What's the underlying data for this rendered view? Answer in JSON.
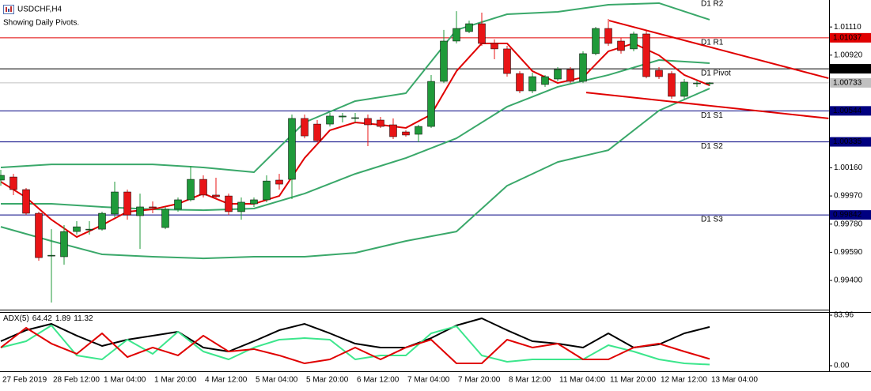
{
  "chart_data": [
    {
      "type": "candlestick",
      "title": "USDCHF,H4",
      "subtitle": "Showing Daily Pivots.",
      "categories": [
        "27 Feb 2019",
        null,
        null,
        null,
        "28 Feb 12:00",
        null,
        null,
        null,
        "1 Mar 04:00",
        null,
        null,
        null,
        "1 Mar 20:00",
        null,
        null,
        null,
        "4 Mar 12:00",
        null,
        null,
        null,
        "5 Mar 04:00",
        null,
        null,
        null,
        "5 Mar 20:00",
        null,
        null,
        null,
        "6 Mar 12:00",
        null,
        null,
        null,
        "7 Mar 04:00",
        null,
        null,
        null,
        "7 Mar 20:00",
        null,
        null,
        null,
        "8 Mar 12:00",
        null,
        null,
        null,
        "11 Mar 04:00",
        null,
        null,
        null,
        "11 Mar 20:00",
        null,
        null,
        null,
        "12 Mar 12:00",
        null,
        null,
        null,
        "13 Mar 04:00"
      ],
      "open": [
        1.00077,
        1.00098,
        1.00013,
        0.99853,
        0.99565,
        0.9956,
        0.9973,
        0.99741,
        0.99746,
        0.99848,
        0.99997,
        0.99837,
        0.99896,
        0.99757,
        0.9988,
        0.99944,
        1.00082,
        0.99976,
        0.9997,
        0.99864,
        0.99917,
        0.99944,
        1.00077,
        1.00082,
        1.00493,
        1.00455,
        1.00455,
        1.00503,
        1.00493,
        1.00493,
        1.00482,
        1.0045,
        1.00402,
        1.00386,
        1.00439,
        1.00743,
        1.01015,
        1.01079,
        1.01132,
        1.00999,
        1.00962,
        1.00796,
        1.00679,
        1.00722,
        1.00759,
        1.00823,
        1.00743,
        1.0093,
        1.011,
        1.01015,
        1.00962,
        1.01063,
        1.00818,
        1.00796,
        1.00642,
        1.00727,
        1.00727
      ],
      "high": [
        1.00146,
        1.00119,
        1.00024,
        0.99864,
        0.99746,
        0.99773,
        0.998,
        0.998,
        0.99864,
        1.00066,
        1.00013,
        0.99986,
        0.99933,
        0.99896,
        0.9996,
        1.00173,
        1.00109,
        1.00093,
        0.99986,
        0.9996,
        0.9996,
        1.00109,
        1.00119,
        1.00519,
        1.00519,
        1.00482,
        1.0053,
        1.0053,
        1.0053,
        1.00519,
        1.00503,
        1.00493,
        1.00413,
        1.0045,
        1.00786,
        1.0109,
        1.01217,
        1.01153,
        1.01207,
        1.01026,
        1.00983,
        1.00812,
        1.00802,
        1.00786,
        1.00839,
        1.00839,
        1.00946,
        1.01111,
        1.01164,
        1.01036,
        1.01079,
        1.0109,
        1.00839,
        1.00812,
        1.00759,
        1.00748,
        1.00738
      ],
      "low": [
        1.00039,
        0.99976,
        0.99842,
        0.99533,
        0.99251,
        0.99506,
        0.99709,
        0.99709,
        0.99736,
        0.99826,
        0.9981,
        0.99613,
        0.99853,
        0.99746,
        0.99864,
        0.99933,
        0.9996,
        0.99949,
        0.99842,
        0.9981,
        0.99896,
        0.99928,
        1.00013,
        0.99949,
        1.00359,
        1.00333,
        1.00439,
        1.00466,
        1.00466,
        1.00306,
        1.00429,
        1.00354,
        1.0037,
        1.00333,
        1.00429,
        1.00732,
        1.00999,
        1.01068,
        1.00983,
        1.00892,
        1.00775,
        1.00663,
        1.00663,
        1.00706,
        1.00743,
        1.00732,
        1.00732,
        1.00919,
        1.00983,
        1.0093,
        1.00946,
        1.00764,
        1.00759,
        1.00626,
        1.0062,
        1.00706,
        1.00711
      ],
      "close": [
        1.00109,
        1.00013,
        0.99853,
        0.99554,
        0.9957,
        0.9973,
        0.99762,
        0.99746,
        0.99853,
        0.99997,
        0.99842,
        0.99896,
        0.9989,
        0.9988,
        0.99944,
        1.00082,
        0.99976,
        0.99965,
        0.99864,
        0.99928,
        0.99944,
        1.00071,
        1.0005,
        1.00493,
        1.00375,
        1.00343,
        1.00509,
        1.00509,
        1.00498,
        1.0045,
        1.00439,
        1.0037,
        1.00381,
        1.00439,
        1.00743,
        1.01015,
        1.011,
        1.01132,
        1.00999,
        1.00962,
        1.00796,
        1.00679,
        1.00775,
        1.00775,
        1.00823,
        1.00743,
        1.0093,
        1.011,
        1.00999,
        1.00951,
        1.01063,
        1.00775,
        1.00775,
        1.00642,
        1.00738,
        1.00732,
        1.00733
      ],
      "up_color": "#1f9a3a",
      "down_color": "#e81416",
      "price_color": "#c0c0c0",
      "ylim": [
        0.99203,
        1.01292
      ],
      "yticks": [
        {
          "value": 1.0111,
          "label": "1.01110"
        },
        {
          "value": 1.0092,
          "label": "1.00920"
        },
        {
          "value": 1.0016,
          "label": "1.00160"
        },
        {
          "value": 0.9997,
          "label": "0.99970"
        },
        {
          "value": 0.9978,
          "label": "0.99780"
        },
        {
          "value": 0.9959,
          "label": "0.99590"
        },
        {
          "value": 0.994,
          "label": "0.99400"
        }
      ],
      "bands": {
        "x": [
          0,
          4,
          8,
          12,
          16,
          20,
          24,
          28,
          32,
          36,
          40,
          44,
          48,
          52,
          56
        ],
        "color": "#3aa86a",
        "upper": [
          1.00162,
          1.00183,
          1.00183,
          1.00183,
          1.00162,
          1.0013,
          1.00466,
          1.0061,
          1.00663,
          1.0109,
          1.01196,
          1.01212,
          1.0126,
          1.01271,
          1.01159
        ],
        "middle": [
          0.99917,
          0.99917,
          0.99896,
          0.9988,
          0.99874,
          0.99885,
          0.99986,
          1.00119,
          1.00226,
          1.00359,
          1.00572,
          1.00706,
          1.00786,
          1.00887,
          1.00866
        ],
        "lower": [
          0.99762,
          0.99666,
          0.99576,
          0.9956,
          0.99549,
          0.9956,
          0.9956,
          0.99586,
          0.99666,
          0.9973,
          1.00039,
          1.00199,
          1.00279,
          1.00546,
          1.00695
        ]
      },
      "ma": {
        "x": [
          0,
          2,
          4,
          6,
          8,
          10,
          12,
          14,
          16,
          18,
          20,
          22,
          24,
          26,
          28,
          30,
          32,
          34,
          36,
          38,
          40,
          42,
          44,
          46,
          48,
          50,
          52,
          54,
          56
        ],
        "color": "#e00000",
        "values": [
          1.00066,
          0.9996,
          0.9981,
          0.99693,
          0.99773,
          0.99864,
          0.9988,
          0.99917,
          0.99986,
          0.99917,
          0.99917,
          0.9997,
          1.00226,
          1.00413,
          1.00466,
          1.0045,
          1.00429,
          1.00519,
          1.00812,
          1.00999,
          1.00999,
          1.00812,
          1.00732,
          1.0077,
          1.00946,
          1.00999,
          1.00919,
          1.00786,
          1.00716
        ]
      },
      "levels": [
        {
          "name": "D1 R2",
          "value": 1.01298,
          "color": "#e00000"
        },
        {
          "name": "D1 R1",
          "value": 1.01037,
          "color": "#e00000"
        },
        {
          "name": "D1 Pivot",
          "value": 1.00828,
          "color": "#000000"
        },
        {
          "name": "D1 S1",
          "value": 1.00544,
          "color": "#000080"
        },
        {
          "name": "D1 S2",
          "value": 1.00335,
          "color": "#000080"
        },
        {
          "name": "D1 S3",
          "value": 0.99842,
          "color": "#000080"
        }
      ],
      "trendlines": [
        {
          "x": [
            48.06,
            65.4
          ],
          "y": [
            1.01153,
            1.00764
          ],
          "color": "#e00000"
        },
        {
          "x": [
            46.25,
            65.4
          ],
          "y": [
            1.00668,
            1.00493
          ],
          "color": "#e00000"
        }
      ]
    },
    {
      "type": "line",
      "title": "ADX(5)",
      "x": [
        0,
        2,
        4,
        6,
        8,
        10,
        12,
        14,
        16,
        18,
        20,
        22,
        24,
        26,
        28,
        30,
        32,
        34,
        36,
        38,
        40,
        42,
        44,
        46,
        48,
        50,
        52,
        54,
        56
      ],
      "series": [
        {
          "color": "#000000",
          "values": [
            40.7,
            59,
            69.5,
            49.9,
            32.8,
            43.3,
            49.9,
            56.4,
            30.2,
            23.6,
            40.7,
            59,
            69.5,
            53.8,
            36.7,
            30.2,
            30.2,
            45.9,
            66.9,
            78.7,
            59,
            40.7,
            36.7,
            30.2,
            53.8,
            30.2,
            35.4,
            53.8,
            64.42
          ]
        },
        {
          "color": "#3ce68c",
          "values": [
            30.2,
            40.7,
            66.9,
            17.1,
            10.5,
            43.3,
            19.7,
            56.4,
            23.6,
            10.5,
            30.2,
            43.3,
            45.9,
            43.3,
            10.5,
            17.1,
            17.1,
            53.8,
            65.6,
            17.1,
            6.6,
            10.5,
            10.5,
            10.5,
            34.1,
            23.6,
            10.5,
            3.9,
            1.89
          ]
        },
        {
          "color": "#e00000",
          "values": [
            30.2,
            63,
            36.7,
            19.7,
            53.8,
            14.4,
            30.2,
            17.1,
            49.9,
            23.6,
            27.6,
            17.1,
            3.9,
            10.5,
            30.2,
            10.5,
            30.2,
            43.3,
            3.9,
            3.9,
            43.3,
            30.2,
            36.7,
            10.5,
            10.5,
            30.2,
            36.7,
            23.6,
            11.32
          ]
        }
      ],
      "ylim": [
        0,
        83.96
      ],
      "yticks": [
        83.96,
        {
          "value": 0,
          "label": "0.00"
        }
      ]
    }
  ]
}
